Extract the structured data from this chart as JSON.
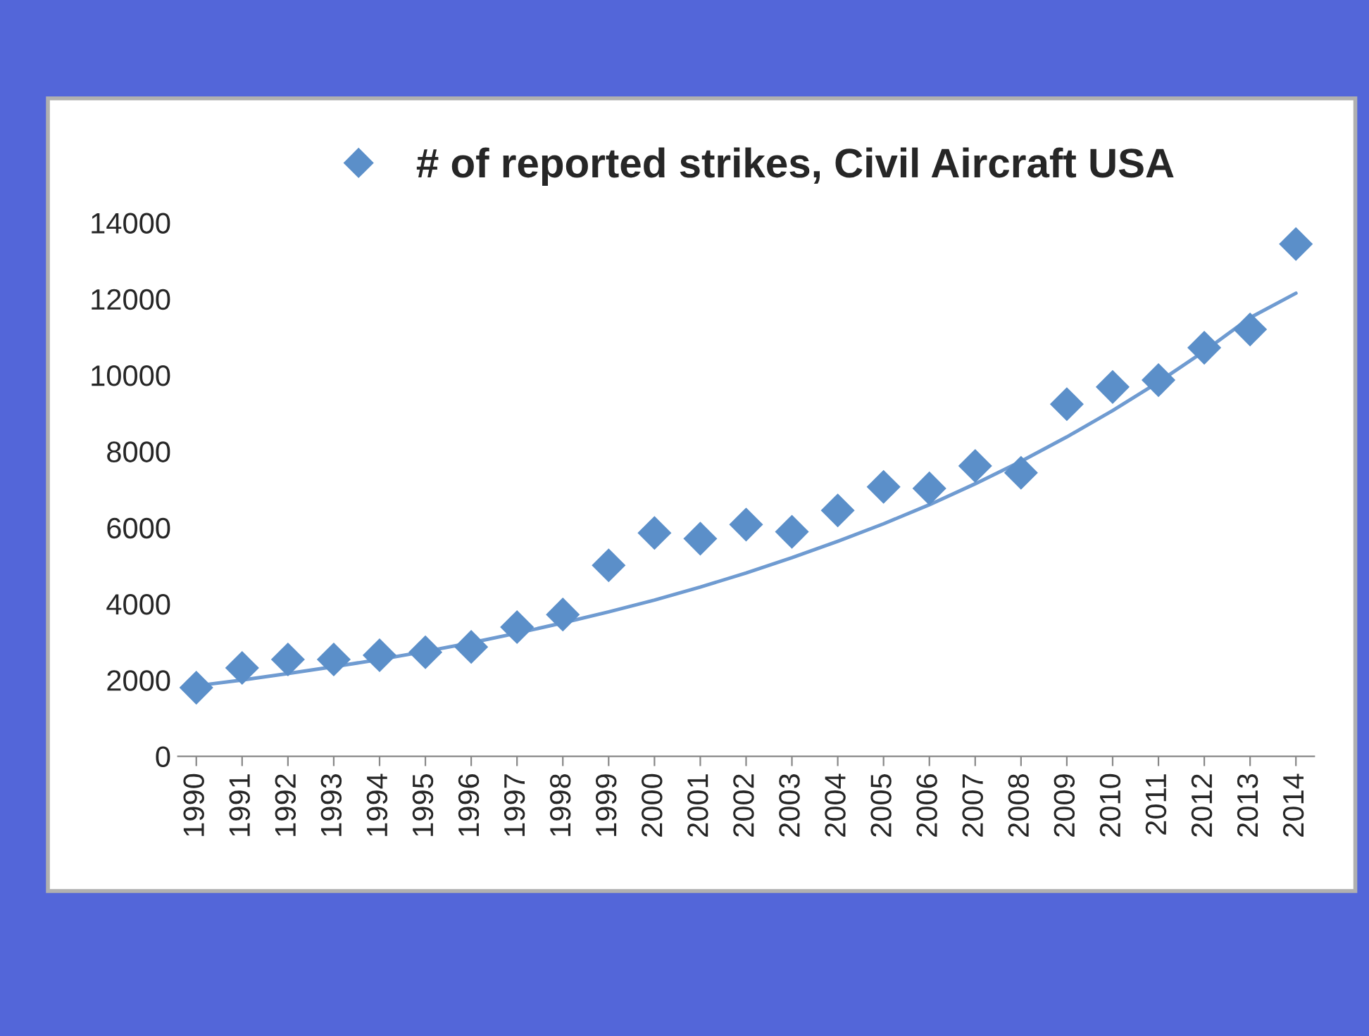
{
  "chart_data": {
    "type": "scatter",
    "categories": [
      "1990",
      "1991",
      "1992",
      "1993",
      "1994",
      "1995",
      "1996",
      "1997",
      "1998",
      "1999",
      "2000",
      "2001",
      "2002",
      "2003",
      "2004",
      "2005",
      "2006",
      "2007",
      "2008",
      "2009",
      "2010",
      "2011",
      "2012",
      "2013",
      "2014"
    ],
    "series": [
      {
        "name": "# of reported strikes, Civil Aircraft USA",
        "marker": "diamond",
        "color": "#5b8fc9",
        "values": [
          1800,
          2320,
          2540,
          2540,
          2650,
          2730,
          2870,
          3390,
          3720,
          5010,
          5860,
          5710,
          6080,
          5890,
          6450,
          7070,
          7030,
          7620,
          7440,
          9240,
          9690,
          9870,
          10720,
          11200,
          13440
        ]
      },
      {
        "type": "line",
        "marker": "none",
        "color": "#6f9bd1",
        "values": [
          1850,
          2000,
          2170,
          2350,
          2540,
          2750,
          2980,
          3230,
          3500,
          3790,
          4100,
          4440,
          4810,
          5210,
          5640,
          6100,
          6600,
          7150,
          7740,
          8380,
          9070,
          9820,
          10630,
          11510,
          12150
        ]
      }
    ],
    "ylim": [
      0,
      14000
    ],
    "yticks": [
      0,
      2000,
      4000,
      6000,
      8000,
      10000,
      12000,
      14000
    ],
    "legend": "top",
    "grid": false
  }
}
